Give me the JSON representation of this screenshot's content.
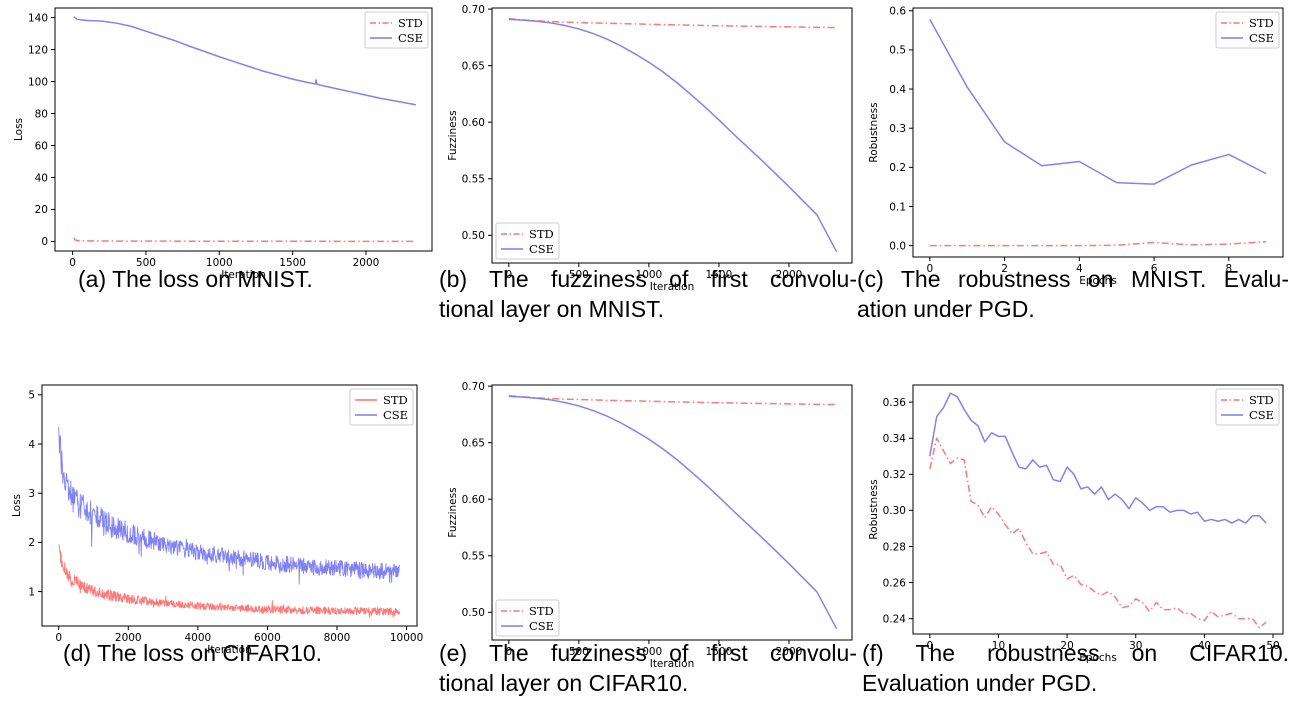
{
  "colors": {
    "std": "#ff7070",
    "cse": "#7a7af5",
    "axis": "#000000"
  },
  "chart_data": [
    {
      "id": "a",
      "type": "line",
      "xlabel": "Iteration",
      "ylabel": "Loss",
      "xlim": [
        -120,
        2450
      ],
      "ylim": [
        -6,
        146
      ],
      "xticks": [
        0,
        500,
        1000,
        1500,
        2000
      ],
      "yticks": [
        0,
        20,
        40,
        60,
        80,
        100,
        120,
        140
      ],
      "legend": "top-right",
      "series": [
        {
          "name": "STD",
          "style": "dashdot",
          "color": "#ff7070",
          "x": [
            10,
            15,
            30,
            60,
            100,
            300,
            1000,
            2000,
            2340
          ],
          "y": [
            2.2,
            1.0,
            0.6,
            0.4,
            0.3,
            0.2,
            0.1,
            0.05,
            0.05
          ]
        },
        {
          "name": "CSE",
          "style": "solid",
          "color": "#7a7af5",
          "x": [
            10,
            30,
            60,
            100,
            200,
            300,
            400,
            500,
            600,
            700,
            800,
            900,
            1000,
            1100,
            1200,
            1300,
            1400,
            1500,
            1600,
            1655,
            1660,
            1665,
            1700,
            1800,
            1900,
            2000,
            2100,
            2200,
            2340
          ],
          "y": [
            140.5,
            139.0,
            138.6,
            138.2,
            137.8,
            136.5,
            134.5,
            131.5,
            128.5,
            125.5,
            122,
            118.8,
            115.5,
            112.5,
            109.5,
            106.5,
            104,
            101.5,
            99.5,
            98.5,
            101,
            98.4,
            97.5,
            95.5,
            93.5,
            91.5,
            89.5,
            87.8,
            85.5
          ]
        }
      ]
    },
    {
      "id": "b",
      "type": "line",
      "xlabel": "Iteration",
      "ylabel": "Fuzziness",
      "xlim": [
        -120,
        2450
      ],
      "ylim": [
        0.4755,
        0.701
      ],
      "xticks": [
        0,
        500,
        1000,
        1500,
        2000
      ],
      "yticks": [
        0.5,
        0.55,
        0.6,
        0.65,
        0.7
      ],
      "ytick_labels": [
        "0.50",
        "0.55",
        "0.60",
        "0.65",
        "0.70"
      ],
      "legend": "bottom-left",
      "series": [
        {
          "name": "STD",
          "style": "dashdot",
          "color": "#ff7070",
          "x": [
            0,
            100,
            200,
            400,
            700,
            1000,
            1300,
            1600,
            1900,
            2200,
            2340
          ],
          "y": [
            0.6915,
            0.6905,
            0.6896,
            0.6885,
            0.6875,
            0.6866,
            0.6858,
            0.6851,
            0.6845,
            0.6839,
            0.6837
          ]
        },
        {
          "name": "CSE",
          "style": "solid",
          "color": "#7a7af5",
          "x": [
            0,
            100,
            200,
            300,
            400,
            500,
            600,
            700,
            800,
            900,
            1000,
            1100,
            1200,
            1300,
            1400,
            1500,
            1600,
            1700,
            1800,
            1900,
            2000,
            2100,
            2200,
            2340
          ],
          "y": [
            0.691,
            0.6903,
            0.6893,
            0.6878,
            0.6855,
            0.6825,
            0.6785,
            0.6735,
            0.6675,
            0.6605,
            0.653,
            0.6445,
            0.635,
            0.6245,
            0.6135,
            0.602,
            0.59,
            0.5785,
            0.567,
            0.555,
            0.543,
            0.5305,
            0.518,
            0.4855
          ]
        }
      ]
    },
    {
      "id": "c",
      "type": "line",
      "xlabel": "Epochs",
      "ylabel": "Robustness",
      "xlim": [
        -0.45,
        9.45
      ],
      "ylim": [
        -0.029,
        0.607
      ],
      "xticks": [
        0,
        2,
        4,
        6,
        8
      ],
      "yticks": [
        0.0,
        0.1,
        0.2,
        0.3,
        0.4,
        0.5,
        0.6
      ],
      "ytick_labels": [
        "0.0",
        "0.1",
        "0.2",
        "0.3",
        "0.4",
        "0.5",
        "0.6"
      ],
      "legend": "top-right",
      "series": [
        {
          "name": "STD",
          "style": "dashdot",
          "color": "#ff7070",
          "x": [
            0,
            1,
            2,
            3,
            4,
            5,
            6,
            7,
            8,
            9
          ],
          "y": [
            0.0,
            0.0,
            0.0,
            0.0,
            0.0,
            0.001,
            0.008,
            0.002,
            0.004,
            0.01
          ]
        },
        {
          "name": "CSE",
          "style": "solid",
          "color": "#7a7af5",
          "x": [
            0,
            1,
            2,
            3,
            4,
            5,
            6,
            7,
            8,
            9
          ],
          "y": [
            0.578,
            0.405,
            0.265,
            0.204,
            0.215,
            0.161,
            0.157,
            0.206,
            0.233,
            0.184
          ]
        }
      ]
    },
    {
      "id": "d",
      "type": "line",
      "xlabel": "Iteration",
      "ylabel": "Loss",
      "xlim": [
        -480,
        10300
      ],
      "ylim": [
        0.3,
        5.2
      ],
      "xticks": [
        0,
        2000,
        4000,
        6000,
        8000,
        10000
      ],
      "yticks": [
        1,
        2,
        3,
        4,
        5
      ],
      "legend": "top-right",
      "noisy": true,
      "series": [
        {
          "name": "STD",
          "style": "solid",
          "color": "#ff7070",
          "band": 0.28,
          "x": [
            0,
            100,
            300,
            600,
            1000,
            1500,
            2000,
            3000,
            4000,
            5000,
            6000,
            7000,
            8000,
            9000,
            9800
          ],
          "y": [
            1.9,
            1.55,
            1.3,
            1.15,
            1.0,
            0.92,
            0.85,
            0.76,
            0.71,
            0.67,
            0.64,
            0.62,
            0.61,
            0.6,
            0.59
          ]
        },
        {
          "name": "CSE",
          "style": "solid",
          "color": "#7a7af5",
          "band": 0.6,
          "x": [
            0,
            100,
            300,
            600,
            1000,
            1500,
            2000,
            3000,
            4000,
            5000,
            6000,
            7000,
            8000,
            9000,
            9800
          ],
          "y": [
            4.2,
            3.5,
            3.0,
            2.75,
            2.55,
            2.35,
            2.2,
            1.95,
            1.8,
            1.7,
            1.6,
            1.52,
            1.47,
            1.42,
            1.4
          ]
        }
      ]
    },
    {
      "id": "e",
      "type": "line",
      "xlabel": "Iteration",
      "ylabel": "Fuzziness",
      "xlim": [
        -120,
        2450
      ],
      "ylim": [
        0.4755,
        0.701
      ],
      "xticks": [
        0,
        500,
        1000,
        1500,
        2000
      ],
      "yticks": [
        0.5,
        0.55,
        0.6,
        0.65,
        0.7
      ],
      "ytick_labels": [
        "0.50",
        "0.55",
        "0.60",
        "0.65",
        "0.70"
      ],
      "legend": "bottom-left",
      "series": [
        {
          "name": "STD",
          "style": "dashdot",
          "color": "#ff7070",
          "x": [
            0,
            100,
            200,
            400,
            700,
            1000,
            1300,
            1600,
            1900,
            2200,
            2340
          ],
          "y": [
            0.6915,
            0.6905,
            0.6896,
            0.6885,
            0.6875,
            0.6866,
            0.6858,
            0.6851,
            0.6845,
            0.6839,
            0.6837
          ]
        },
        {
          "name": "CSE",
          "style": "solid",
          "color": "#7a7af5",
          "x": [
            0,
            100,
            200,
            300,
            400,
            500,
            600,
            700,
            800,
            900,
            1000,
            1100,
            1200,
            1300,
            1400,
            1500,
            1600,
            1700,
            1800,
            1900,
            2000,
            2100,
            2200,
            2340
          ],
          "y": [
            0.691,
            0.6903,
            0.6893,
            0.6878,
            0.6855,
            0.6825,
            0.6785,
            0.6735,
            0.6675,
            0.6605,
            0.653,
            0.6445,
            0.635,
            0.6245,
            0.6135,
            0.602,
            0.59,
            0.5785,
            0.567,
            0.555,
            0.543,
            0.5305,
            0.518,
            0.4855
          ]
        }
      ]
    },
    {
      "id": "f",
      "type": "line",
      "xlabel": "Epochs",
      "ylabel": "Robustness",
      "xlim": [
        -2.45,
        51.45
      ],
      "ylim": [
        0.2315,
        0.3695
      ],
      "xticks": [
        0,
        10,
        20,
        30,
        40,
        50
      ],
      "yticks": [
        0.24,
        0.26,
        0.28,
        0.3,
        0.32,
        0.34,
        0.36
      ],
      "ytick_labels": [
        "0.24",
        "0.26",
        "0.28",
        "0.30",
        "0.32",
        "0.34",
        "0.36"
      ],
      "legend": "top-right",
      "series": [
        {
          "name": "STD",
          "style": "dashdot",
          "color": "#ff7070",
          "x": [
            0,
            1,
            2,
            3,
            4,
            5,
            6,
            7,
            8,
            9,
            10,
            11,
            12,
            13,
            14,
            15,
            16,
            17,
            18,
            19,
            20,
            21,
            22,
            23,
            24,
            25,
            26,
            27,
            28,
            29,
            30,
            31,
            32,
            33,
            34,
            35,
            36,
            37,
            38,
            39,
            40,
            41,
            42,
            43,
            44,
            45,
            46,
            47,
            48,
            49
          ],
          "y": [
            0.323,
            0.34,
            0.333,
            0.326,
            0.329,
            0.328,
            0.305,
            0.303,
            0.296,
            0.302,
            0.298,
            0.292,
            0.287,
            0.29,
            0.282,
            0.276,
            0.276,
            0.277,
            0.27,
            0.27,
            0.262,
            0.264,
            0.259,
            0.258,
            0.255,
            0.253,
            0.255,
            0.252,
            0.246,
            0.247,
            0.251,
            0.249,
            0.244,
            0.249,
            0.245,
            0.245,
            0.246,
            0.243,
            0.243,
            0.24,
            0.239,
            0.244,
            0.241,
            0.242,
            0.243,
            0.24,
            0.24,
            0.24,
            0.235,
            0.238
          ]
        },
        {
          "name": "CSE",
          "style": "solid",
          "color": "#7a7af5",
          "x": [
            0,
            1,
            2,
            3,
            4,
            5,
            6,
            7,
            8,
            9,
            10,
            11,
            12,
            13,
            14,
            15,
            16,
            17,
            18,
            19,
            20,
            21,
            22,
            23,
            24,
            25,
            26,
            27,
            28,
            29,
            30,
            31,
            32,
            33,
            34,
            35,
            36,
            37,
            38,
            39,
            40,
            41,
            42,
            43,
            44,
            45,
            46,
            47,
            48,
            49
          ],
          "y": [
            0.33,
            0.352,
            0.357,
            0.365,
            0.363,
            0.356,
            0.35,
            0.347,
            0.338,
            0.343,
            0.341,
            0.341,
            0.332,
            0.324,
            0.323,
            0.328,
            0.324,
            0.325,
            0.317,
            0.316,
            0.324,
            0.32,
            0.312,
            0.313,
            0.309,
            0.313,
            0.306,
            0.309,
            0.306,
            0.301,
            0.307,
            0.304,
            0.3,
            0.302,
            0.302,
            0.299,
            0.3,
            0.3,
            0.298,
            0.299,
            0.294,
            0.295,
            0.294,
            0.295,
            0.293,
            0.295,
            0.293,
            0.297,
            0.297,
            0.293
          ]
        }
      ]
    }
  ],
  "captions": [
    {
      "id": "a",
      "first": "(a) The loss on MNIST.",
      "rest": ""
    },
    {
      "id": "b",
      "first": "(b) The fuzziness of first convolu-",
      "rest": "tional layer on MNIST."
    },
    {
      "id": "c",
      "first": "(c) The robustness on MNIST. Evalu-",
      "rest": "ation under PGD."
    },
    {
      "id": "d",
      "first": "(d) The loss on CIFAR10.",
      "rest": ""
    },
    {
      "id": "e",
      "first": "(e) The fuzziness of first convolu-",
      "rest": "tional layer on CIFAR10."
    },
    {
      "id": "f",
      "first": "(f) The robustness on CIFAR10.",
      "rest": "Evaluation under PGD."
    }
  ]
}
